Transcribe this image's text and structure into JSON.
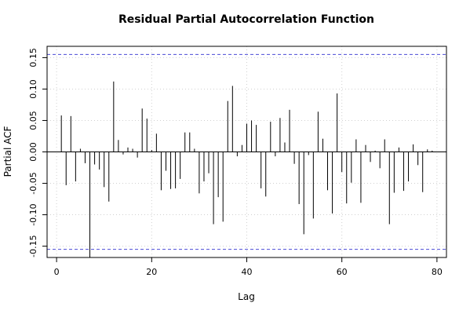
{
  "chart_data": {
    "type": "bar",
    "title": "Residual Partial Autocorrelation Function",
    "xlabel": "Lag",
    "ylabel": "Partial ACF",
    "xlim": [
      -2,
      82
    ],
    "ylim": [
      -0.168,
      0.168
    ],
    "x_ticks": [
      0,
      20,
      40,
      60,
      80
    ],
    "x_tick_labels": [
      "0",
      "20",
      "40",
      "60",
      "80"
    ],
    "y_ticks": [
      -0.15,
      -0.1,
      -0.05,
      0.0,
      0.05,
      0.1,
      0.15
    ],
    "y_tick_labels": [
      "-0.15",
      "-0.10",
      "-0.05",
      "0.00",
      "0.05",
      "0.10",
      "0.15"
    ],
    "grid": true,
    "confidence_band": 0.155,
    "confidence_color": "#4b4bd6",
    "stem_color": "#000000",
    "grid_color": "#d0d0d0",
    "lags": [
      1,
      2,
      3,
      4,
      5,
      6,
      7,
      8,
      9,
      10,
      11,
      12,
      13,
      14,
      15,
      16,
      17,
      18,
      19,
      20,
      21,
      22,
      23,
      24,
      25,
      26,
      27,
      28,
      29,
      30,
      31,
      32,
      33,
      34,
      35,
      36,
      37,
      38,
      39,
      40,
      41,
      42,
      43,
      44,
      45,
      46,
      47,
      48,
      49,
      50,
      51,
      52,
      53,
      54,
      55,
      56,
      57,
      58,
      59,
      60,
      61,
      62,
      63,
      64,
      65,
      66,
      67,
      68,
      69,
      70,
      71,
      72,
      73,
      74,
      75,
      76,
      77,
      78,
      79
    ],
    "values": [
      0.058,
      -0.053,
      0.057,
      -0.047,
      0.005,
      -0.018,
      -0.168,
      -0.02,
      -0.028,
      -0.056,
      -0.079,
      0.112,
      0.019,
      -0.004,
      0.007,
      0.005,
      -0.009,
      0.069,
      0.053,
      0.003,
      0.029,
      -0.061,
      -0.03,
      -0.059,
      -0.058,
      -0.043,
      0.031,
      0.031,
      0.005,
      -0.066,
      -0.047,
      -0.034,
      -0.115,
      -0.072,
      -0.111,
      0.081,
      0.105,
      -0.007,
      0.011,
      0.045,
      0.05,
      0.043,
      -0.058,
      -0.071,
      0.048,
      -0.007,
      0.054,
      0.015,
      0.067,
      -0.019,
      -0.083,
      -0.131,
      -0.005,
      -0.106,
      0.064,
      0.021,
      -0.061,
      -0.098,
      0.093,
      -0.032,
      -0.082,
      -0.049,
      0.02,
      -0.081,
      0.011,
      -0.016,
      0.002,
      -0.026,
      0.02,
      -0.115,
      -0.065,
      0.007,
      -0.062,
      -0.047,
      0.012,
      -0.021,
      -0.064,
      0.004,
      0.002
    ]
  }
}
